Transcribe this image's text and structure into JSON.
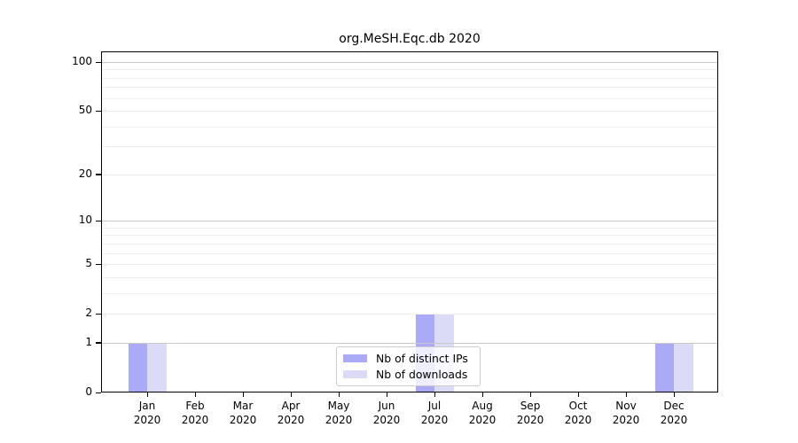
{
  "chart_data": {
    "type": "bar",
    "title": "org.MeSH.Eqc.db 2020",
    "categories": [
      {
        "month": "Jan",
        "year": "2020"
      },
      {
        "month": "Feb",
        "year": "2020"
      },
      {
        "month": "Mar",
        "year": "2020"
      },
      {
        "month": "Apr",
        "year": "2020"
      },
      {
        "month": "May",
        "year": "2020"
      },
      {
        "month": "Jun",
        "year": "2020"
      },
      {
        "month": "Jul",
        "year": "2020"
      },
      {
        "month": "Aug",
        "year": "2020"
      },
      {
        "month": "Sep",
        "year": "2020"
      },
      {
        "month": "Oct",
        "year": "2020"
      },
      {
        "month": "Nov",
        "year": "2020"
      },
      {
        "month": "Dec",
        "year": "2020"
      }
    ],
    "series": [
      {
        "name": "Nb of distinct IPs",
        "color": "#aaaaf7",
        "values": [
          1,
          0,
          0,
          0,
          0,
          0,
          2,
          0,
          0,
          0,
          0,
          1
        ]
      },
      {
        "name": "Nb of downloads",
        "color": "#dbdbf8",
        "values": [
          1,
          0,
          0,
          0,
          0,
          0,
          2,
          0,
          0,
          0,
          0,
          1
        ]
      }
    ],
    "yscale": "log1p",
    "ylim": [
      0,
      116
    ],
    "yticks": [
      0,
      1,
      2,
      5,
      10,
      20,
      50,
      100
    ],
    "grid": {
      "major_values": [
        1,
        10,
        100
      ],
      "minor_values": [
        2,
        3,
        4,
        5,
        6,
        7,
        8,
        9,
        20,
        30,
        40,
        50,
        60,
        70,
        80,
        90
      ],
      "major_color": "#c8c8c8",
      "minor_color": "#f0f0f0"
    },
    "legend": {
      "position": "bottom-center",
      "entries": [
        "Nb of distinct IPs",
        "Nb of downloads"
      ]
    }
  }
}
